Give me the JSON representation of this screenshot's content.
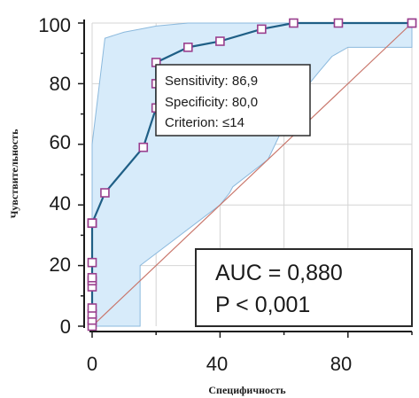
{
  "chart_data": {
    "type": "line",
    "title": "",
    "xlabel": "Специфичность",
    "ylabel": "Чувствительность",
    "xlim": [
      0,
      100
    ],
    "ylim": [
      0,
      100
    ],
    "x_ticks": [
      "0",
      "40",
      "80"
    ],
    "y_ticks": [
      "0",
      "20",
      "40",
      "60",
      "80",
      "100"
    ],
    "grid": true,
    "colors": {
      "curve": "#1f5f86",
      "marker_edge": "#9a3f8e",
      "ci_fill": "#d7ebfa",
      "ci_edge": "#8bb9dd",
      "reference_line": "#c9776c",
      "grid": "#d4d4d4"
    },
    "series": [
      {
        "x": [
          0,
          0,
          0,
          0,
          0,
          0,
          0,
          0,
          0,
          0,
          0,
          0,
          4,
          16,
          20,
          20,
          20,
          30,
          40,
          53,
          63,
          77,
          100,
          100
        ],
        "y": [
          0,
          2,
          4,
          6,
          13,
          15,
          16,
          21,
          34,
          34,
          34,
          34,
          44,
          59,
          72,
          80,
          87,
          92,
          94,
          98,
          100,
          100,
          100,
          100
        ]
      }
    ],
    "confidence_band_upper": [
      [
        0,
        60
      ],
      [
        4,
        95
      ],
      [
        10,
        97
      ],
      [
        15,
        98
      ],
      [
        20,
        99
      ],
      [
        30,
        100
      ],
      [
        100,
        100
      ]
    ],
    "confidence_band_lower": [
      [
        0,
        0
      ],
      [
        15,
        0
      ],
      [
        15,
        20
      ],
      [
        40,
        40
      ],
      [
        43,
        44
      ],
      [
        44,
        46
      ],
      [
        55,
        55
      ],
      [
        64,
        75
      ],
      [
        71,
        84
      ],
      [
        75,
        89
      ],
      [
        80,
        92
      ],
      [
        100,
        92
      ]
    ],
    "reference_line": [
      [
        0,
        0
      ],
      [
        100,
        100
      ]
    ],
    "tooltip": {
      "lines": [
        "Sensitivity: 86,9",
        "Specificity: 80,0",
        "Criterion: ≤14"
      ]
    },
    "annotation": {
      "lines": [
        "AUC = 0,880",
        "P < 0,001"
      ]
    }
  }
}
